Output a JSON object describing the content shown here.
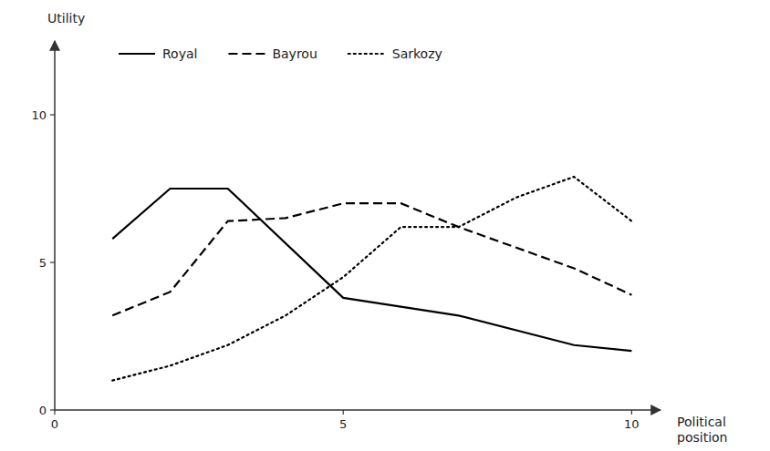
{
  "chart_data": {
    "type": "line",
    "x_label": "Political\nposition",
    "y_label": "Utility",
    "series": [
      {
        "name": "Royal",
        "color": "#000000",
        "line_style": "solid",
        "x": [
          1,
          2,
          3,
          5,
          6,
          7,
          9,
          10
        ],
        "values": [
          5.8,
          7.5,
          7.5,
          3.8,
          3.5,
          3.2,
          2.2,
          2.0
        ]
      },
      {
        "name": "Bayrou",
        "color": "#000000",
        "line_style": "dashed",
        "x": [
          1,
          2,
          3,
          4,
          5,
          6,
          7,
          8,
          9,
          10
        ],
        "values": [
          3.2,
          4.0,
          6.4,
          6.5,
          7.0,
          7.0,
          6.2,
          5.5,
          4.8,
          3.9
        ]
      },
      {
        "name": "Sarkozy",
        "color": "#000000",
        "line_style": "dotted",
        "x": [
          1,
          2,
          3,
          4,
          5,
          6,
          7,
          8,
          9,
          10
        ],
        "values": [
          1.0,
          1.5,
          2.2,
          3.2,
          4.5,
          6.2,
          6.2,
          7.2,
          7.9,
          6.4
        ]
      }
    ],
    "xlim": [
      0,
      10.5
    ],
    "ylim": [
      0,
      12.5
    ],
    "xticks": [
      0,
      5,
      10
    ],
    "yticks": [
      0,
      5,
      10
    ],
    "legend": "upper left",
    "grid": false
  }
}
